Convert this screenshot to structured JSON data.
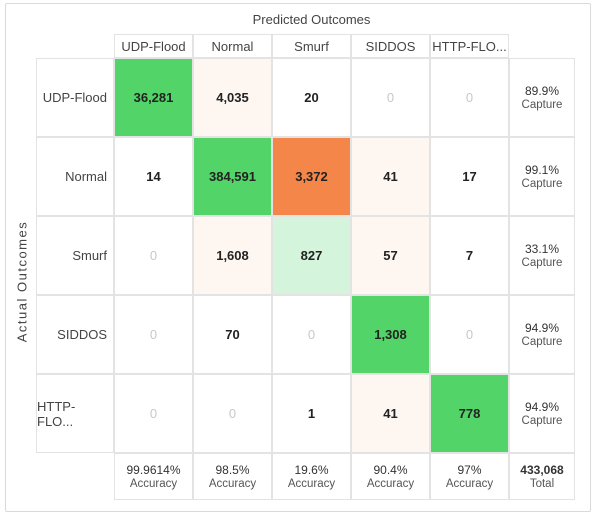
{
  "chart_data": {
    "type": "heatmap",
    "title": "Predicted Outcomes",
    "xlabel": "Predicted Outcomes",
    "ylabel": "Actual Outcomes",
    "columns": [
      "UDP-Flood",
      "Normal",
      "Smurf",
      "SIDDOS",
      "HTTP-FLO..."
    ],
    "rows": [
      "UDP-Flood",
      "Normal",
      "Smurf",
      "SIDDOS",
      "HTTP-FLO..."
    ],
    "values": [
      [
        36281,
        4035,
        20,
        0,
        0
      ],
      [
        14,
        384591,
        3372,
        41,
        17
      ],
      [
        0,
        1608,
        827,
        57,
        7
      ],
      [
        0,
        70,
        0,
        1308,
        0
      ],
      [
        0,
        0,
        1,
        41,
        778
      ]
    ],
    "labels": [
      [
        "36,281",
        "4,035",
        "20",
        "0",
        "0"
      ],
      [
        "14",
        "384,591",
        "3,372",
        "41",
        "17"
      ],
      [
        "0",
        "1,608",
        "827",
        "57",
        "7"
      ],
      [
        "0",
        "70",
        "0",
        "1,308",
        "0"
      ],
      [
        "0",
        "0",
        "1",
        "41",
        "778"
      ]
    ],
    "row_stats": [
      {
        "value": "89.9%",
        "label": "Capture"
      },
      {
        "value": "99.1%",
        "label": "Capture"
      },
      {
        "value": "33.1%",
        "label": "Capture"
      },
      {
        "value": "94.9%",
        "label": "Capture"
      },
      {
        "value": "94.9%",
        "label": "Capture"
      }
    ],
    "col_stats": [
      {
        "value": "99.9614%",
        "label": "Accuracy"
      },
      {
        "value": "98.5%",
        "label": "Accuracy"
      },
      {
        "value": "19.6%",
        "label": "Accuracy"
      },
      {
        "value": "90.4%",
        "label": "Accuracy"
      },
      {
        "value": "97%",
        "label": "Accuracy"
      }
    ],
    "total": {
      "value": "433,068",
      "label": "Total"
    },
    "colors": {
      "correct": "#52d468",
      "correct_light": "#d4f5dc",
      "error_high": "#f5864a",
      "error_faint": "#fdf6f1",
      "empty": "#ffffff"
    },
    "cell_color_keys": [
      [
        "correct",
        "error_faint",
        "empty",
        "empty",
        "empty"
      ],
      [
        "empty",
        "correct",
        "error_high",
        "error_faint",
        "empty"
      ],
      [
        "empty",
        "error_faint",
        "correct_light",
        "error_faint",
        "empty"
      ],
      [
        "empty",
        "empty",
        "empty",
        "correct",
        "empty"
      ],
      [
        "empty",
        "empty",
        "empty",
        "error_faint",
        "correct"
      ]
    ]
  }
}
